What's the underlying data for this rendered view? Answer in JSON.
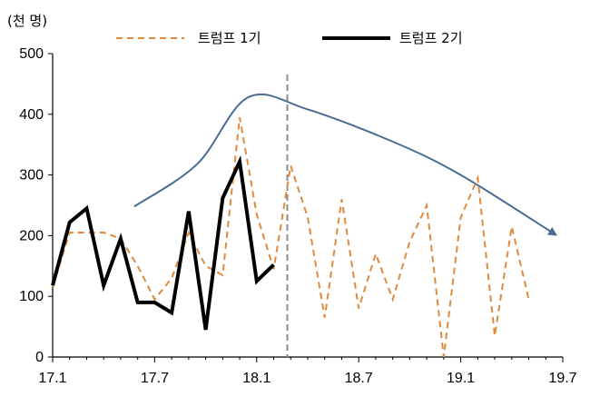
{
  "chart_data": {
    "type": "line",
    "unit_label": "(천 명)",
    "ylim": [
      0,
      500
    ],
    "y_ticks": [
      0,
      100,
      200,
      300,
      400,
      500
    ],
    "xlim": [
      0,
      30
    ],
    "x_ticks": [
      {
        "pos": 0,
        "label": "17.1"
      },
      {
        "pos": 6,
        "label": "17.7"
      },
      {
        "pos": 12,
        "label": "18.1"
      },
      {
        "pos": 18,
        "label": "18.7"
      },
      {
        "pos": 24,
        "label": "19.1"
      },
      {
        "pos": 30,
        "label": "19.7"
      }
    ],
    "divider_x": 13.8,
    "legend": [
      {
        "name": "트럼프 1기",
        "style": "dashed",
        "color": "#E08A3C"
      },
      {
        "name": "트럼프 2기",
        "style": "solid",
        "color": "#000000"
      }
    ],
    "series": [
      {
        "name": "트럼프 1기",
        "color": "#E08A3C",
        "style": "dashed",
        "values": [
          115,
          205,
          205,
          205,
          195,
          150,
          95,
          130,
          205,
          150,
          135,
          395,
          235,
          145,
          315,
          230,
          65,
          260,
          80,
          170,
          95,
          190,
          250,
          0,
          230,
          295,
          35,
          215,
          95
        ]
      },
      {
        "name": "트럼프 2기",
        "color": "#000000",
        "style": "solid",
        "values": [
          118,
          222,
          245,
          118,
          195,
          90,
          90,
          73,
          240,
          45,
          262,
          322,
          125,
          152
        ]
      }
    ],
    "trend_arrow": {
      "color": "#4A6C93",
      "points": [
        [
          4.8,
          248
        ],
        [
          8.5,
          318
        ],
        [
          11.5,
          428
        ],
        [
          15,
          408
        ],
        [
          20,
          355
        ],
        [
          24,
          300
        ],
        [
          29.5,
          203
        ]
      ]
    }
  }
}
